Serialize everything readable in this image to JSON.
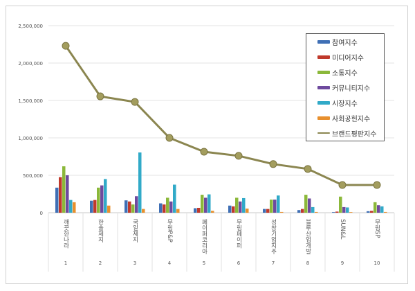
{
  "chart_data": {
    "type": "bar",
    "categories": [
      "깨끗한나라",
      "한솔제지",
      "국일제지",
      "무림P&P",
      "페이퍼코리아",
      "무림페이퍼",
      "성창기업지주",
      "블루산업개발",
      "SUN&L",
      "무림SP"
    ],
    "category_numbers": [
      "1",
      "2",
      "3",
      "4",
      "5",
      "6",
      "7",
      "8",
      "9",
      "10"
    ],
    "ylim": [
      0,
      2500000
    ],
    "yticks": [
      "0",
      "500,000",
      "1,000,000",
      "1,500,000",
      "2,000,000",
      "2,500,000"
    ],
    "grid": true,
    "legend_position": "top-right",
    "series": [
      {
        "name": "참여지수",
        "color": "#3f6fb5",
        "values": [
          335000,
          160000,
          165000,
          125000,
          60000,
          95000,
          50000,
          35000,
          8000,
          20000
        ]
      },
      {
        "name": "미디어지수",
        "color": "#c0392b",
        "values": [
          475000,
          170000,
          150000,
          110000,
          65000,
          85000,
          50000,
          50000,
          15000,
          25000
        ]
      },
      {
        "name": "소통지수",
        "color": "#8bb83a",
        "values": [
          620000,
          335000,
          110000,
          200000,
          240000,
          200000,
          175000,
          240000,
          215000,
          140000
        ]
      },
      {
        "name": "커뮤니티지수",
        "color": "#6e4a9e",
        "values": [
          500000,
          365000,
          220000,
          150000,
          200000,
          150000,
          175000,
          190000,
          75000,
          100000
        ]
      },
      {
        "name": "시장지수",
        "color": "#31aac8",
        "values": [
          170000,
          450000,
          805000,
          375000,
          245000,
          195000,
          230000,
          75000,
          70000,
          85000
        ]
      },
      {
        "name": "사회공헌지수",
        "color": "#e8902e",
        "values": [
          140000,
          95000,
          50000,
          50000,
          25000,
          55000,
          10000,
          10000,
          8000,
          10000
        ]
      },
      {
        "name": "브랜드평판지수",
        "type": "line",
        "color": "#8b8650",
        "values": [
          2230000,
          1555000,
          1480000,
          1000000,
          815000,
          760000,
          650000,
          585000,
          370000,
          370000
        ]
      }
    ]
  }
}
